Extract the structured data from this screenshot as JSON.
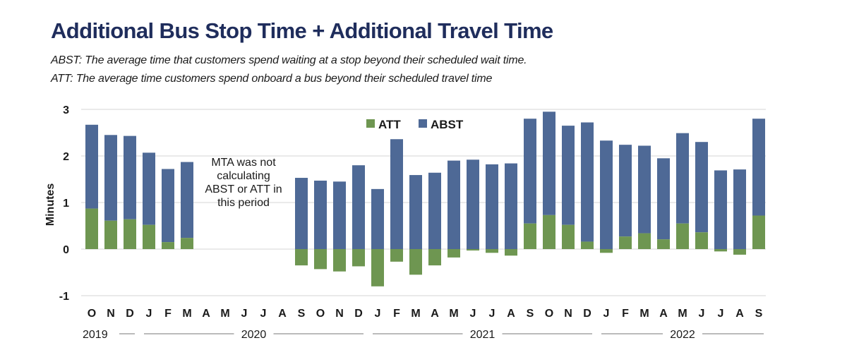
{
  "title": "Additional Bus Stop Time + Additional Travel Time",
  "subtitle_1": "ABST: The average time that customers spend waiting at a stop beyond their scheduled wait time.",
  "subtitle_2": "ATT: The average time customers spend onboard a bus beyond their scheduled travel time",
  "colors": {
    "att": "#6e9651",
    "abst": "#4e6996",
    "grid": "#d6d6d6"
  },
  "chart_data": {
    "type": "bar",
    "stacked": true,
    "title": "Additional Bus Stop Time + Additional Travel Time",
    "ylabel": "Minutes",
    "ylim": [
      -1,
      3
    ],
    "yticks": [
      "3",
      "2",
      "1",
      "0",
      "-1"
    ],
    "grid": true,
    "legend_position": "top-center",
    "categories": [
      "O",
      "N",
      "D",
      "J",
      "F",
      "M",
      "A",
      "M",
      "J",
      "J",
      "A",
      "S",
      "O",
      "N",
      "D",
      "J",
      "F",
      "M",
      "A",
      "M",
      "J",
      "J",
      "A",
      "S",
      "O",
      "N",
      "D",
      "J",
      "F",
      "M",
      "A",
      "M",
      "J",
      "J",
      "A",
      "S"
    ],
    "years": [
      {
        "label": "2019",
        "start": 0,
        "end": 2
      },
      {
        "label": "2020",
        "start": 3,
        "end": 14
      },
      {
        "label": "2021",
        "start": 15,
        "end": 26
      },
      {
        "label": "2022",
        "start": 27,
        "end": 35
      }
    ],
    "series": [
      {
        "name": "ATT",
        "values": [
          0.87,
          0.61,
          0.64,
          0.52,
          0.15,
          0.24,
          null,
          null,
          null,
          null,
          null,
          -0.35,
          -0.43,
          -0.48,
          -0.37,
          -0.8,
          -0.27,
          -0.55,
          -0.35,
          -0.18,
          -0.03,
          -0.08,
          -0.14,
          0.55,
          0.73,
          0.52,
          0.16,
          -0.08,
          0.27,
          0.34,
          0.21,
          0.55,
          0.36,
          -0.05,
          -0.12,
          0.72
        ]
      },
      {
        "name": "ABST",
        "values": [
          1.8,
          1.84,
          1.79,
          1.55,
          1.57,
          1.63,
          null,
          null,
          null,
          null,
          null,
          1.53,
          1.47,
          1.45,
          1.8,
          1.29,
          2.36,
          1.59,
          1.64,
          1.9,
          1.92,
          1.82,
          1.84,
          2.25,
          2.22,
          2.13,
          2.56,
          2.33,
          1.97,
          1.88,
          1.74,
          1.94,
          1.94,
          1.69,
          1.71,
          2.08
        ]
      }
    ],
    "annotation": [
      "MTA was not",
      "calculating",
      "ABST or ATT in",
      "this period"
    ]
  }
}
